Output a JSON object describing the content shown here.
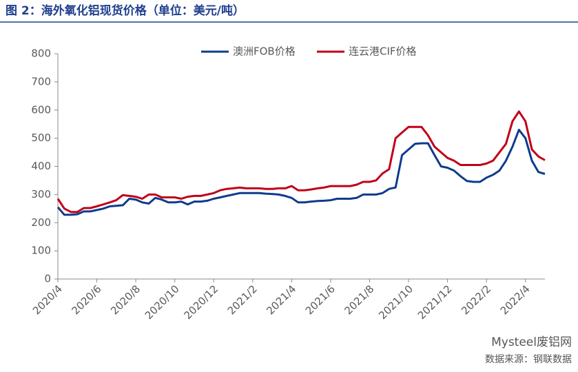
{
  "chart_data": {
    "type": "line",
    "title": "图 2：海外氧化铝现货价格（单位：美元/吨）",
    "source": "数据来源：钢联数据",
    "watermark": "Mysteel废铝网",
    "categories": [
      "2020/4",
      null,
      null,
      null,
      null,
      null,
      "2020/6",
      null,
      null,
      null,
      null,
      null,
      "2020/8",
      null,
      null,
      null,
      null,
      null,
      "2020/10",
      null,
      null,
      null,
      null,
      null,
      "2020/12",
      null,
      null,
      null,
      null,
      null,
      "2021/2",
      null,
      null,
      null,
      null,
      null,
      "2021/4",
      null,
      null,
      null,
      null,
      null,
      "2021/6",
      null,
      null,
      null,
      null,
      null,
      "2021/8",
      null,
      null,
      null,
      null,
      null,
      "2021/10",
      null,
      null,
      null,
      null,
      null,
      "2021/12",
      null,
      null,
      null,
      null,
      null,
      "2022/2",
      null,
      null,
      null,
      null,
      null,
      "2022/4",
      null,
      null,
      null
    ],
    "series": [
      {
        "name": "澳洲FOB价格",
        "color": "#0d3b8c",
        "values": [
          255,
          228,
          228,
          230,
          240,
          240,
          245,
          250,
          258,
          260,
          262,
          285,
          282,
          272,
          268,
          288,
          282,
          272,
          272,
          275,
          265,
          275,
          275,
          278,
          285,
          290,
          295,
          300,
          305,
          305,
          305,
          305,
          303,
          302,
          300,
          295,
          288,
          272,
          272,
          275,
          277,
          278,
          280,
          285,
          285,
          285,
          288,
          300,
          300,
          300,
          305,
          320,
          325,
          440,
          460,
          480,
          482,
          482,
          440,
          400,
          395,
          385,
          365,
          348,
          345,
          345,
          360,
          370,
          385,
          420,
          470,
          530,
          500,
          420,
          380,
          373
        ]
      },
      {
        "name": "连云港CIF价格",
        "color": "#c00018",
        "values": [
          285,
          250,
          238,
          238,
          252,
          252,
          258,
          265,
          272,
          280,
          298,
          295,
          292,
          285,
          300,
          300,
          290,
          290,
          290,
          285,
          292,
          295,
          295,
          300,
          305,
          315,
          320,
          322,
          325,
          322,
          322,
          322,
          320,
          320,
          322,
          322,
          330,
          315,
          315,
          318,
          322,
          325,
          330,
          330,
          330,
          330,
          335,
          345,
          345,
          350,
          375,
          390,
          500,
          520,
          540,
          540,
          540,
          510,
          470,
          450,
          430,
          420,
          405,
          405,
          405,
          405,
          410,
          420,
          450,
          480,
          560,
          595,
          560,
          460,
          435,
          422
        ]
      }
    ],
    "ylim": [
      0,
      800
    ],
    "yticks": [
      0,
      100,
      200,
      300,
      400,
      500,
      600,
      700,
      800
    ],
    "legend": "top"
  }
}
